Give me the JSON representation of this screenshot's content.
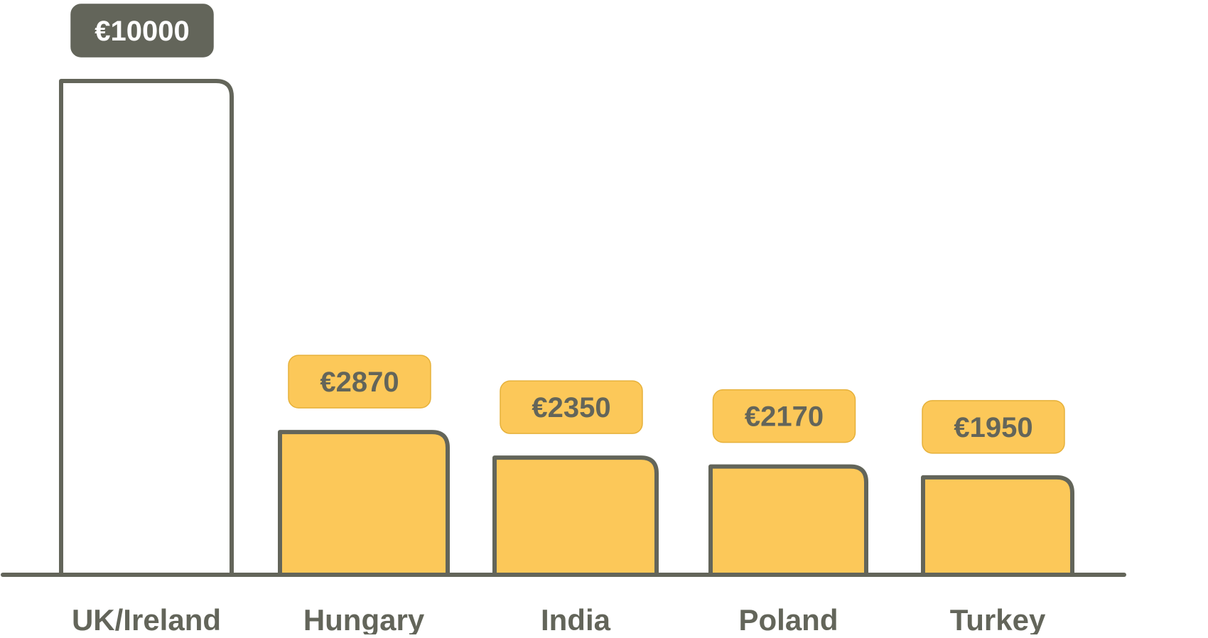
{
  "chart_data": {
    "type": "bar",
    "categories": [
      "UK/Ireland",
      "Hungary",
      "India",
      "Poland",
      "Turkey"
    ],
    "values": [
      10000,
      2870,
      2350,
      2170,
      1950
    ],
    "value_labels": [
      "€10000",
      "€2870",
      "€2350",
      "€2170",
      "€1950"
    ],
    "highlight": [
      false,
      true,
      true,
      true,
      true
    ],
    "title": "",
    "xlabel": "",
    "ylabel": "",
    "ylim": [
      0,
      10000
    ],
    "grid": false,
    "legend": "none",
    "colors": {
      "outline": "#63655a",
      "highlight_fill": "#fcc859",
      "plain_fill": "#ffffff",
      "dark_badge": "#63655a",
      "dark_badge_text": "#ffffff",
      "light_badge_text": "#63655a",
      "light_badge_border": "#e6b13a"
    }
  }
}
